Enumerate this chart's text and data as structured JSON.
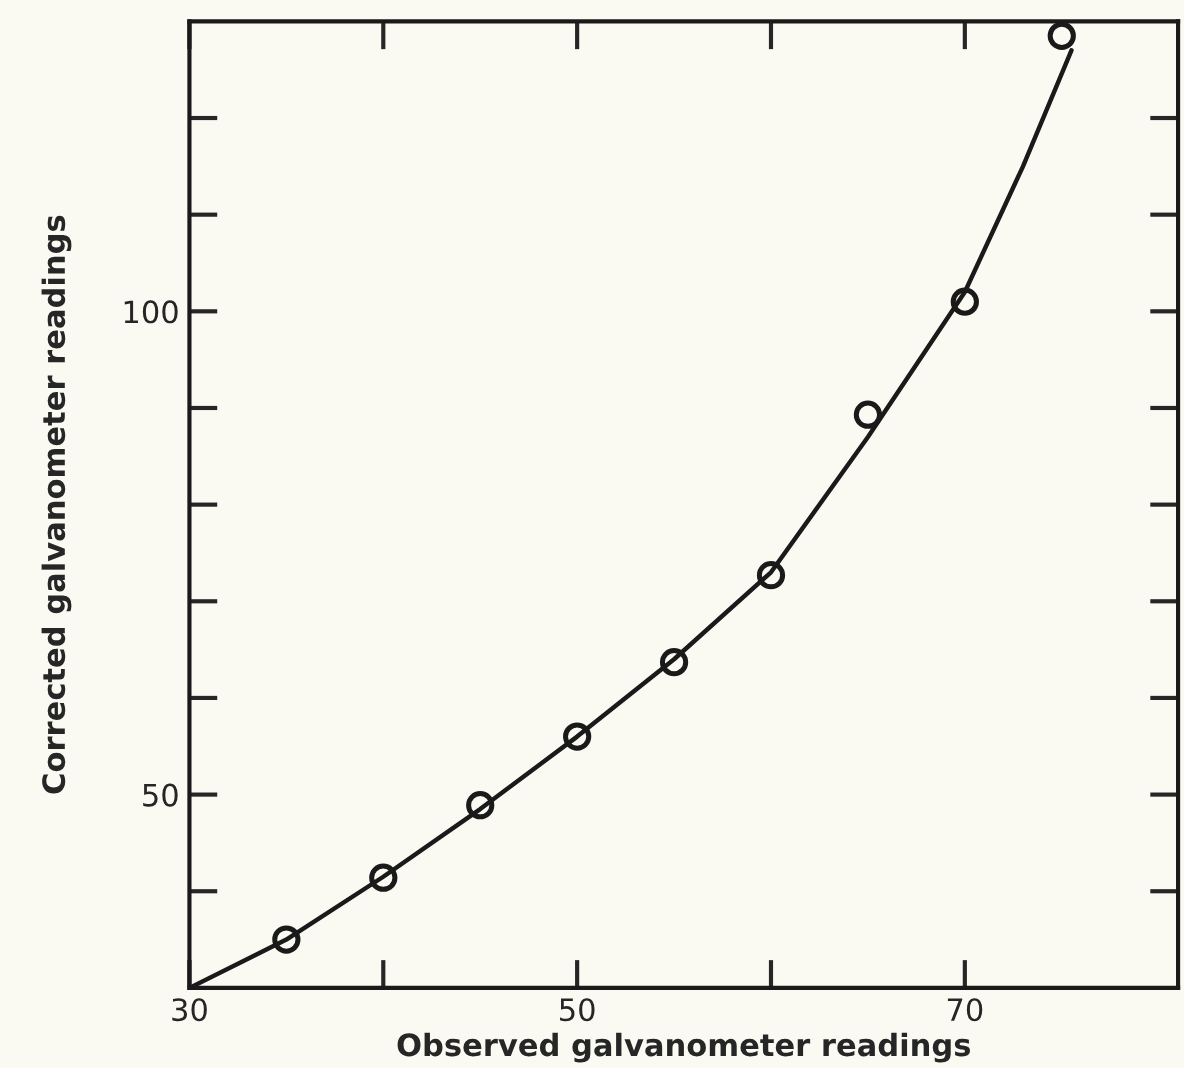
{
  "chart_data": {
    "type": "scatter",
    "xlabel": "Observed galvanometer readings",
    "ylabel": "Corrected galvanometer readings",
    "series": [
      {
        "color": "#1a1a1a",
        "marker": "circle",
        "x": [
          35,
          40,
          45,
          50,
          55,
          60,
          65,
          70,
          75
        ],
        "values": [
          35,
          41.4,
          48.9,
          56,
          63.7,
          72.7,
          89.3,
          101,
          128.5
        ]
      },
      {
        "type": "line",
        "color": "#1a1a1a",
        "marker": "none",
        "line_style": "solid",
        "x": [
          30,
          35,
          40,
          45,
          50,
          55,
          60,
          65,
          70,
          73,
          75.5
        ],
        "values": [
          30,
          35,
          41.5,
          48.5,
          56,
          64,
          73,
          87,
          102,
          115,
          127
        ]
      }
    ],
    "xlim": [
      30,
      81
    ],
    "ylim": [
      30,
      130
    ],
    "xticks": [
      30,
      {
        "value": 40,
        "label": null
      },
      50,
      {
        "value": 60,
        "label": null
      },
      70
    ],
    "yticks": [
      {
        "value": 40,
        "label": null
      },
      50,
      {
        "value": 60,
        "label": null
      },
      {
        "value": 70,
        "label": null
      },
      {
        "value": 80,
        "label": null
      },
      {
        "value": 90,
        "label": null
      },
      100,
      {
        "value": 110,
        "label": null
      },
      {
        "value": 120,
        "label": null
      }
    ],
    "grid": false,
    "legend": false
  }
}
